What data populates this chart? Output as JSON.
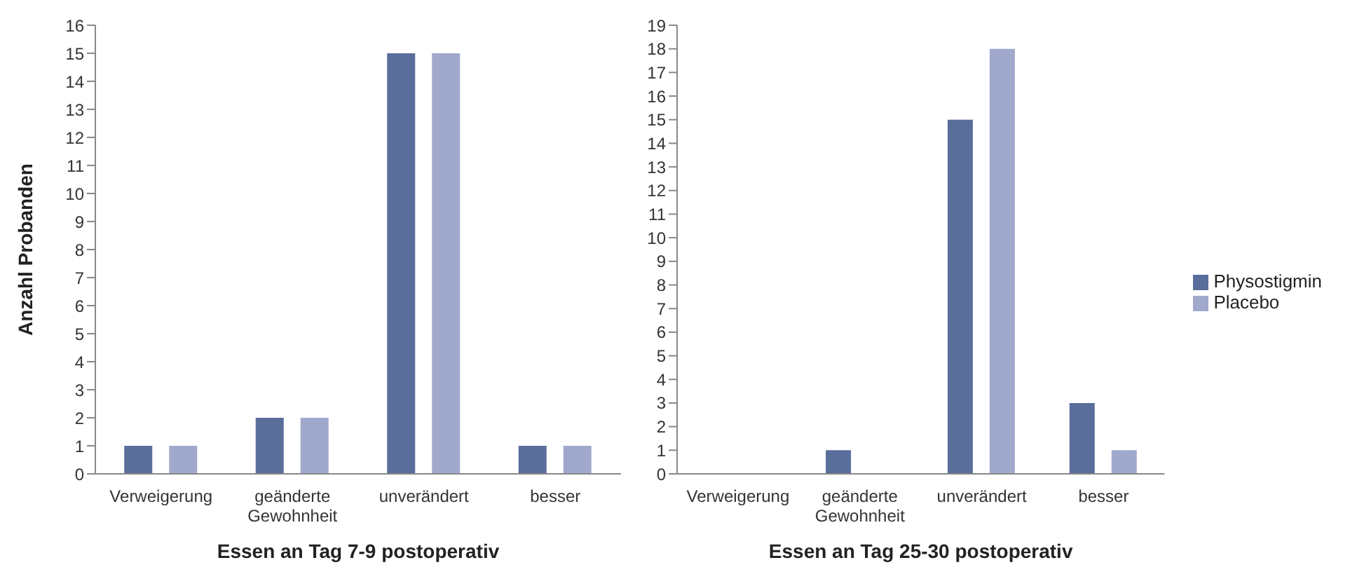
{
  "chart_data": [
    {
      "type": "bar",
      "categories": [
        "Verweigerung",
        "geänderte Gewohnheit",
        "unverändert",
        "besser"
      ],
      "xlabel": "Essen an Tag 7-9 postoperativ",
      "ylabel": "Anzahl Probanden",
      "ylim": [
        0,
        16
      ],
      "yticks": [
        0,
        1,
        2,
        3,
        4,
        5,
        6,
        7,
        8,
        9,
        10,
        11,
        12,
        13,
        14,
        15,
        16
      ],
      "grid": false,
      "legend": false,
      "series": [
        {
          "color": "#5a6e9c",
          "values": [
            1,
            2,
            15,
            1
          ]
        },
        {
          "color": "#a0a8cc",
          "values": [
            1,
            2,
            15,
            1
          ]
        }
      ]
    },
    {
      "type": "bar",
      "categories": [
        "Verweigerung",
        "geänderte Gewohnheit",
        "unverändert",
        "besser"
      ],
      "xlabel": "Essen an Tag 25-30 postoperativ",
      "ylim": [
        0,
        19
      ],
      "yticks": [
        0,
        1,
        2,
        3,
        4,
        5,
        6,
        7,
        8,
        9,
        10,
        11,
        12,
        13,
        14,
        15,
        16,
        17,
        18,
        19
      ],
      "grid": false,
      "legend": "right",
      "series": [
        {
          "name": "Physostigmin",
          "color": "#5a6e9c",
          "values": [
            0,
            1,
            15,
            3
          ]
        },
        {
          "name": "Placebo",
          "color": "#a0a8cc",
          "values": [
            0,
            0,
            18,
            1
          ]
        }
      ]
    }
  ]
}
